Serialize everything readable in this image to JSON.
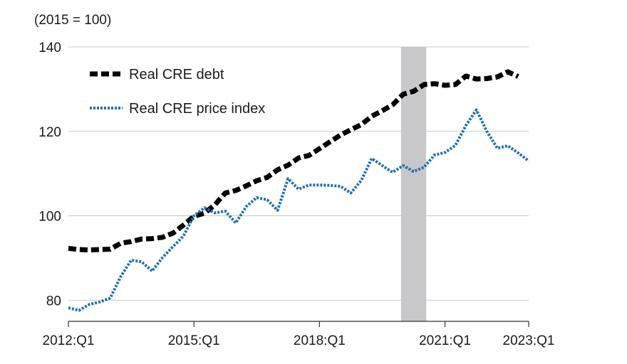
{
  "chart_data": {
    "type": "line",
    "unit_label": "(2015 = 100)",
    "ylim": [
      75,
      140
    ],
    "yticks": [
      80,
      100,
      120,
      140
    ],
    "xlim": [
      0,
      44
    ],
    "xticks": [
      {
        "label": "2012:Q1",
        "q": 0
      },
      {
        "label": "2015:Q1",
        "q": 12
      },
      {
        "label": "2018:Q1",
        "q": 24
      },
      {
        "label": "2021:Q1",
        "q": 36
      },
      {
        "label": "2023:Q1",
        "q": 44
      }
    ],
    "grid": true,
    "legend_position": "top-left",
    "recession": {
      "start_q": 32,
      "end_q": 34,
      "color": "#c8c8ca"
    },
    "series": [
      {
        "name": "Real CRE debt",
        "color": "#000000",
        "style": "dashed",
        "values": [
          92.3,
          92.0,
          91.9,
          92.0,
          92.1,
          93.5,
          93.9,
          94.5,
          94.6,
          94.9,
          95.9,
          97.8,
          99.9,
          100.6,
          102.6,
          105.4,
          106.0,
          107.1,
          108.3,
          109.1,
          110.9,
          112.0,
          113.7,
          114.3,
          115.9,
          117.5,
          119.1,
          120.4,
          121.6,
          123.6,
          124.9,
          126.3,
          128.8,
          129.5,
          131.1,
          131.3,
          130.9,
          131.1,
          133.1,
          132.4,
          132.5,
          132.9,
          134.1,
          133.0
        ]
      },
      {
        "name": "Real CRE price index",
        "color": "#1f6fb2",
        "style": "dotted",
        "values": [
          78.2,
          77.6,
          79.0,
          79.6,
          80.5,
          85.6,
          89.5,
          89.1,
          86.9,
          90.1,
          92.7,
          95.2,
          100.0,
          101.9,
          100.7,
          101.1,
          98.3,
          102.2,
          104.3,
          103.8,
          101.3,
          108.8,
          106.3,
          107.3,
          107.3,
          107.2,
          107.0,
          105.4,
          108.4,
          113.6,
          111.9,
          110.3,
          111.9,
          110.5,
          111.5,
          114.4,
          115.0,
          116.7,
          121.4,
          125.1,
          120.0,
          116.0,
          116.6,
          114.9,
          113.0
        ]
      }
    ]
  }
}
